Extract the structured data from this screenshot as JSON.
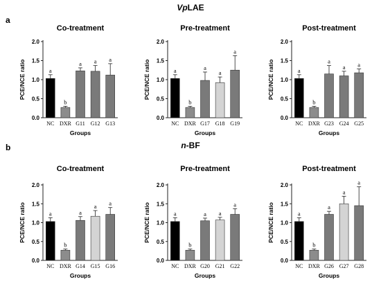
{
  "figure": {
    "row_titles": [
      {
        "prefix": "Vp",
        "suffix": "LAE"
      },
      {
        "prefix": "n",
        "suffix": "-BF"
      }
    ],
    "panel_letters": [
      "a",
      "b"
    ]
  },
  "colors": {
    "NC": "#000000",
    "DXR": "#8c8c8c",
    "treat": "#7a7a7a",
    "treat_light": "#d4d4d4",
    "axis": "#222222"
  },
  "chart_data": [
    {
      "type": "bar",
      "row": 0,
      "col": 0,
      "title": "Co-treatment",
      "xlabel": "Groups",
      "ylabel": "PCE/NCE ratio",
      "ylim": [
        0,
        2.0
      ],
      "yticks": [
        "0.0",
        "0.5",
        "1.0",
        "1.5",
        "2.0"
      ],
      "categories": [
        "NC",
        "DXR",
        "G11",
        "G12",
        "G13"
      ],
      "values": [
        1.03,
        0.27,
        1.23,
        1.22,
        1.12
      ],
      "errors": [
        0.1,
        0.03,
        0.08,
        0.15,
        0.3
      ],
      "letters": [
        "a",
        "b",
        "a",
        "a",
        "a"
      ]
    },
    {
      "type": "bar",
      "row": 0,
      "col": 1,
      "title": "Pre-treatment",
      "xlabel": "Groups",
      "ylabel": "PCE/NCE ratio",
      "ylim": [
        0,
        2.0
      ],
      "yticks": [
        "0.0",
        "0.5",
        "1.0",
        "1.5",
        "2.0"
      ],
      "categories": [
        "NC",
        "DXR",
        "G17",
        "G18",
        "G19"
      ],
      "values": [
        1.03,
        0.27,
        0.98,
        0.92,
        1.25
      ],
      "errors": [
        0.1,
        0.03,
        0.22,
        0.15,
        0.38
      ],
      "letters": [
        "a",
        "b",
        "a",
        "a",
        "a"
      ]
    },
    {
      "type": "bar",
      "row": 0,
      "col": 2,
      "title": "Post-treatment",
      "xlabel": "Groups",
      "ylabel": "PCE/NCE ratio",
      "ylim": [
        0,
        2.0
      ],
      "yticks": [
        "0.0",
        "0.5",
        "1.0",
        "1.5",
        "2.0"
      ],
      "categories": [
        "NC",
        "DXR",
        "G23",
        "G24",
        "G25"
      ],
      "values": [
        1.03,
        0.27,
        1.15,
        1.1,
        1.18
      ],
      "errors": [
        0.1,
        0.03,
        0.22,
        0.12,
        0.1
      ],
      "letters": [
        "a",
        "b",
        "a",
        "a",
        "a"
      ]
    },
    {
      "type": "bar",
      "row": 1,
      "col": 0,
      "title": "Co-treatment",
      "xlabel": "Groups",
      "ylabel": "PCE/NCE ratio",
      "ylim": [
        0,
        2.0
      ],
      "yticks": [
        "0.0",
        "0.5",
        "1.0",
        "1.5",
        "2.0"
      ],
      "categories": [
        "NC",
        "DXR",
        "G14",
        "G15",
        "G16"
      ],
      "values": [
        1.03,
        0.27,
        1.06,
        1.17,
        1.22
      ],
      "errors": [
        0.1,
        0.03,
        0.1,
        0.15,
        0.18
      ],
      "letters": [
        "a",
        "b",
        "a",
        "a",
        "a"
      ]
    },
    {
      "type": "bar",
      "row": 1,
      "col": 1,
      "title": "Pre-treatment",
      "xlabel": "Groups",
      "ylabel": "PCE/NCE ratio",
      "ylim": [
        0,
        2.0
      ],
      "yticks": [
        "0.0",
        "0.5",
        "1.0",
        "1.5",
        "2.0"
      ],
      "categories": [
        "NC",
        "DXR",
        "G20",
        "G21",
        "G22"
      ],
      "values": [
        1.03,
        0.27,
        1.05,
        1.07,
        1.22
      ],
      "errors": [
        0.1,
        0.03,
        0.07,
        0.07,
        0.15
      ],
      "letters": [
        "a",
        "b",
        "a",
        "a",
        "a"
      ]
    },
    {
      "type": "bar",
      "row": 1,
      "col": 2,
      "title": "Post-treatment",
      "xlabel": "Groups",
      "ylabel": "PCE/NCE ratio",
      "ylim": [
        0,
        2.0
      ],
      "yticks": [
        "0.0",
        "0.5",
        "1.0",
        "1.5",
        "2.0"
      ],
      "categories": [
        "NC",
        "DXR",
        "G26",
        "G27",
        "G28"
      ],
      "values": [
        1.03,
        0.27,
        1.22,
        1.5,
        1.45
      ],
      "errors": [
        0.1,
        0.03,
        0.08,
        0.2,
        0.5
      ],
      "letters": [
        "a",
        "b",
        "a",
        "a",
        "a"
      ]
    }
  ]
}
